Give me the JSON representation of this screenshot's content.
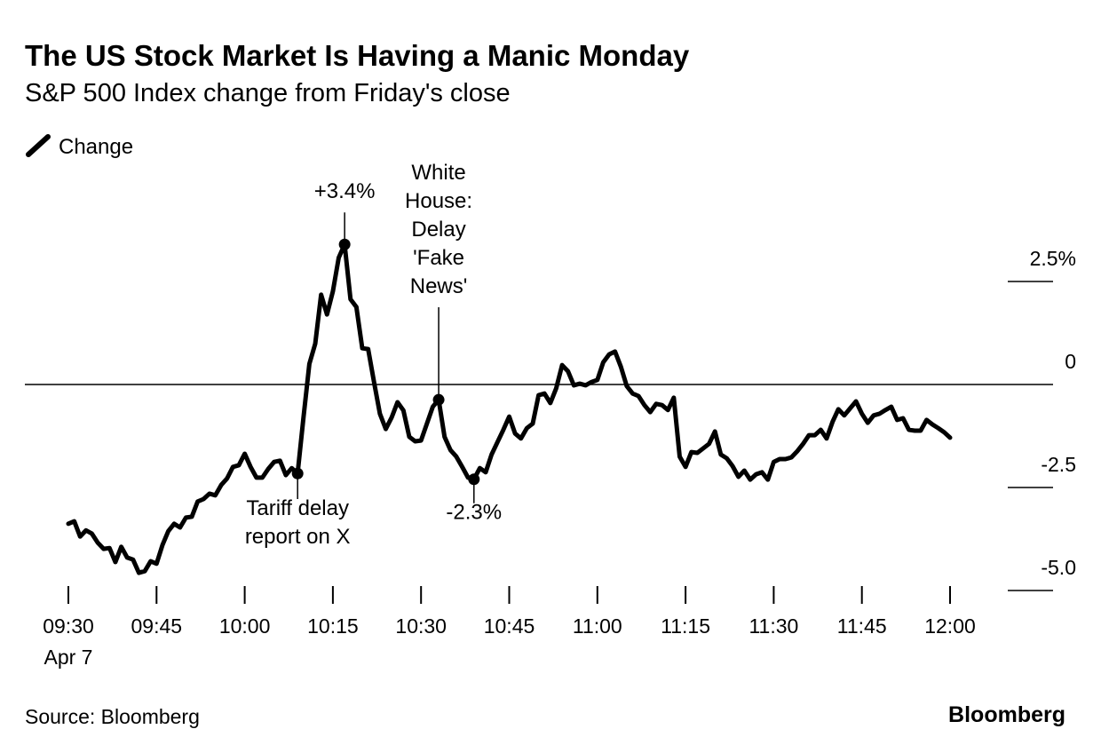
{
  "chart_data": {
    "type": "line",
    "title": "The US Stock Market Is Having a Manic Monday",
    "subtitle": "S&P 500 Index change from Friday's close",
    "source": "Source: Bloomberg",
    "brand": "Bloomberg",
    "date_label": "Apr 7",
    "x": [
      "09:30",
      "09:31",
      "09:32",
      "09:33",
      "09:34",
      "09:35",
      "09:36",
      "09:37",
      "09:38",
      "09:39",
      "09:40",
      "09:41",
      "09:42",
      "09:43",
      "09:44",
      "09:45",
      "09:46",
      "09:47",
      "09:48",
      "09:49",
      "09:50",
      "09:51",
      "09:52",
      "09:53",
      "09:54",
      "09:55",
      "09:56",
      "09:57",
      "09:58",
      "09:59",
      "10:00",
      "10:01",
      "10:02",
      "10:03",
      "10:04",
      "10:05",
      "10:06",
      "10:07",
      "10:08",
      "10:09",
      "10:10",
      "10:11",
      "10:12",
      "10:13",
      "10:14",
      "10:15",
      "10:16",
      "10:17",
      "10:18",
      "10:19",
      "10:20",
      "10:21",
      "10:22",
      "10:23",
      "10:24",
      "10:25",
      "10:26",
      "10:27",
      "10:28",
      "10:29",
      "10:30",
      "10:31",
      "10:32",
      "10:33",
      "10:34",
      "10:35",
      "10:36",
      "10:37",
      "10:38",
      "10:39",
      "10:40",
      "10:41",
      "10:42",
      "10:43",
      "10:44",
      "10:45",
      "10:46",
      "10:47",
      "10:48",
      "10:49",
      "10:50",
      "10:51",
      "10:52",
      "10:53",
      "10:54",
      "10:55",
      "10:56",
      "10:57",
      "10:58",
      "10:59",
      "11:00",
      "11:01",
      "11:02",
      "11:03",
      "11:04",
      "11:05",
      "11:06",
      "11:07",
      "11:08",
      "11:09",
      "11:10",
      "11:11",
      "11:12",
      "11:13",
      "11:14",
      "11:15",
      "11:16",
      "11:17",
      "11:18",
      "11:19",
      "11:20",
      "11:21",
      "11:22",
      "11:23",
      "11:24",
      "11:25",
      "11:26",
      "11:27",
      "11:28",
      "11:29",
      "11:30",
      "11:31",
      "11:32",
      "11:33",
      "11:34",
      "11:35",
      "11:36",
      "11:37",
      "11:38",
      "11:39",
      "11:40",
      "11:41",
      "11:42",
      "11:43",
      "11:44",
      "11:45",
      "11:46",
      "11:47",
      "11:48",
      "11:49",
      "11:50",
      "11:51",
      "11:52",
      "11:53",
      "11:54",
      "11:55",
      "11:56",
      "11:57",
      "11:58",
      "11:59",
      "12:00"
    ],
    "series": [
      {
        "name": "Change",
        "color": "#000000",
        "values": [
          -3.38,
          -3.32,
          -3.69,
          -3.54,
          -3.62,
          -3.84,
          -3.99,
          -3.97,
          -4.31,
          -3.94,
          -4.2,
          -4.25,
          -4.57,
          -4.53,
          -4.29,
          -4.35,
          -3.9,
          -3.56,
          -3.38,
          -3.47,
          -3.23,
          -3.21,
          -2.84,
          -2.78,
          -2.65,
          -2.69,
          -2.44,
          -2.28,
          -2.0,
          -1.96,
          -1.68,
          -2.0,
          -2.26,
          -2.26,
          -2.05,
          -1.88,
          -1.85,
          -2.2,
          -2.03,
          -2.16,
          -0.8,
          0.5,
          0.99,
          2.18,
          1.7,
          2.26,
          3.08,
          3.4,
          2.07,
          1.88,
          0.88,
          0.86,
          0.06,
          -0.71,
          -1.08,
          -0.8,
          -0.43,
          -0.63,
          -1.27,
          -1.38,
          -1.36,
          -0.95,
          -0.54,
          -0.37,
          -1.27,
          -1.59,
          -1.75,
          -2.0,
          -2.26,
          -2.3,
          -2.03,
          -2.13,
          -1.7,
          -1.4,
          -1.1,
          -0.78,
          -1.19,
          -1.31,
          -1.06,
          -0.95,
          -0.26,
          -0.22,
          -0.45,
          -0.09,
          0.47,
          0.32,
          -0.02,
          0.02,
          -0.02,
          0.06,
          0.11,
          0.54,
          0.73,
          0.8,
          0.43,
          -0.04,
          -0.22,
          -0.28,
          -0.5,
          -0.67,
          -0.47,
          -0.5,
          -0.62,
          -0.32,
          -1.75,
          -2.0,
          -1.64,
          -1.66,
          -1.55,
          -1.44,
          -1.14,
          -1.7,
          -1.79,
          -1.98,
          -2.24,
          -2.09,
          -2.31,
          -2.18,
          -2.13,
          -2.31,
          -1.88,
          -1.81,
          -1.81,
          -1.77,
          -1.62,
          -1.44,
          -1.23,
          -1.23,
          -1.1,
          -1.31,
          -0.91,
          -0.6,
          -0.75,
          -0.58,
          -0.41,
          -0.71,
          -0.93,
          -0.75,
          -0.71,
          -0.62,
          -0.54,
          -0.86,
          -0.82,
          -1.1,
          -1.12,
          -1.12,
          -0.86,
          -0.97,
          -1.06,
          -1.16,
          -1.29
        ]
      }
    ],
    "xlim": [
      "09:30",
      "12:00"
    ],
    "xticks": [
      "09:30",
      "09:45",
      "10:00",
      "10:15",
      "10:30",
      "10:45",
      "11:00",
      "11:15",
      "11:30",
      "11:45",
      "12:00"
    ],
    "ylim": [
      -5,
      5
    ],
    "yticks": [
      {
        "value": 2.5,
        "label": "2.5%"
      },
      0,
      -2.5,
      {
        "value": -5,
        "label": "-5.0"
      }
    ],
    "annotations": [
      {
        "x": "10:09",
        "text": [
          "Tariff delay",
          "report on X"
        ],
        "position": "below"
      },
      {
        "x": "10:17",
        "text": [
          "+3.4%"
        ],
        "position": "above"
      },
      {
        "x": "10:33",
        "text": [
          "White",
          "House:",
          "Delay",
          "'Fake",
          "News'"
        ],
        "position": "above"
      },
      {
        "x": "10:39",
        "text": [
          "-2.3%"
        ],
        "position": "below"
      }
    ]
  }
}
